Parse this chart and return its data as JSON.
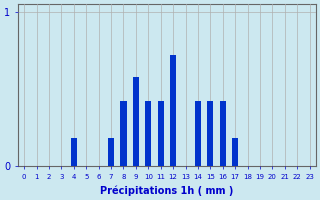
{
  "title": "",
  "xlabel": "Précipitations 1h ( mm )",
  "categories": [
    0,
    1,
    2,
    3,
    4,
    5,
    6,
    7,
    8,
    9,
    10,
    11,
    12,
    13,
    14,
    15,
    16,
    17,
    18,
    19,
    20,
    21,
    22,
    23
  ],
  "values": [
    0,
    0,
    0,
    0,
    0.18,
    0,
    0,
    0.18,
    0.42,
    0.58,
    0.42,
    0.42,
    0.72,
    0.0,
    0.42,
    0.42,
    0.42,
    0.18,
    0,
    0,
    0,
    0,
    0,
    0
  ],
  "bar_color": "#0033cc",
  "background_color": "#cce8f0",
  "grid_color": "#b0b0b0",
  "axis_color": "#666666",
  "text_color": "#0000cc",
  "ylim": [
    0,
    1.05
  ],
  "yticks": [
    0,
    1
  ],
  "xlim": [
    -0.5,
    23.5
  ],
  "bar_width": 0.5
}
